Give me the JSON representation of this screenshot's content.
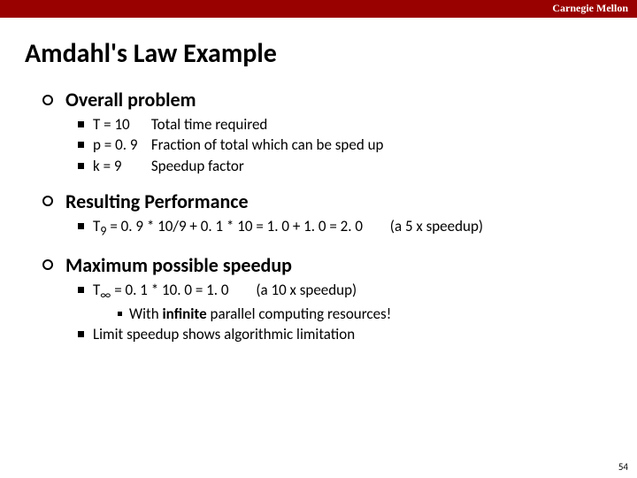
{
  "branding": "Carnegie Mellon",
  "title": "Amdahl's Law Example",
  "sections": {
    "s1": {
      "heading": "Overall problem",
      "items": {
        "a_key": "T = 10",
        "a_val": "Total time required",
        "b_key": "p = 0. 9",
        "b_val": "Fraction of total which can be sped up",
        "c_key": "k = 9",
        "c_val": "Speedup factor"
      }
    },
    "s2": {
      "heading": "Resulting Performance",
      "line_prefix": "T",
      "line_sub": "9",
      "line_rest": " = 0. 9 * 10/9 + 0. 1 * 10 = 1. 0 + 1. 0 = 2. 0",
      "line_note": "(a 5 x speedup)"
    },
    "s3": {
      "heading": "Maximum possible speedup",
      "r1_prefix": "T",
      "r1_sub": "∞",
      "r1_rest": " = 0. 1 * 10. 0 = 1. 0",
      "r1_note": "(a 10 x speedup)",
      "r1_sub_pre": "With ",
      "r1_sub_bold": "infinite",
      "r1_sub_post": " parallel computing resources!",
      "r2": "Limit speedup shows algorithmic limitation"
    }
  },
  "page_number": "54",
  "colors": {
    "topbar": "#990000",
    "text": "#000000",
    "background": "#ffffff"
  }
}
